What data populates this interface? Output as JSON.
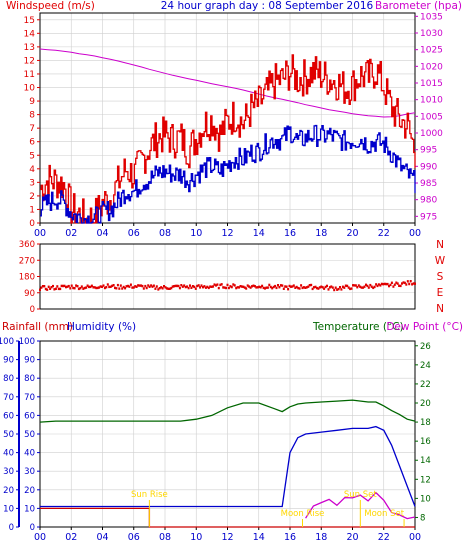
{
  "header": {
    "windspeed_label": "Windspeed (m/s)",
    "title": "24 hour graph day : 08 September 2016",
    "barometer_label": "Barometer (hpa)"
  },
  "lower_header": {
    "rainfall_label": "Rainfall (mm)",
    "humidity_label": "Humidity (%)",
    "temperature_label": "Temperature (°C)",
    "dewpoint_label": "Dew Point (°C)"
  },
  "colors": {
    "wind_gust": "#e00000",
    "wind_avg": "#0000cc",
    "barometer": "#cc00cc",
    "direction": "#e00000",
    "temperature": "#006600",
    "humidity": "#0000cc",
    "rain": "#cc0000",
    "dewpoint": "#cc00cc",
    "annotation": "#ffd700",
    "grid": "#cfcfcf",
    "frame": "#000000"
  },
  "chart_data": [
    {
      "type": "line",
      "panel": "wind_barometer",
      "x_ticks": [
        "00",
        "02",
        "04",
        "06",
        "08",
        "10",
        "12",
        "14",
        "16",
        "18",
        "20",
        "22",
        "00"
      ],
      "y_left_ticks": [
        0,
        1,
        2,
        3,
        4,
        5,
        6,
        7,
        8,
        9,
        10,
        11,
        12,
        13,
        14,
        15
      ],
      "y_left_range": [
        0,
        15.5
      ],
      "y_right_ticks": [
        975,
        980,
        985,
        990,
        995,
        1000,
        1005,
        1010,
        1015,
        1020,
        1025,
        1030,
        1035
      ],
      "y_right_range": [
        973,
        1036
      ],
      "hours": [
        0,
        0.5,
        1,
        1.5,
        2,
        2.5,
        3,
        3.5,
        4,
        4.5,
        5,
        5.5,
        6,
        6.5,
        7,
        7.5,
        8,
        8.5,
        9,
        9.5,
        10,
        10.5,
        11,
        11.5,
        12,
        12.5,
        13,
        13.5,
        14,
        14.5,
        15,
        15.5,
        16,
        16.5,
        17,
        17.5,
        18,
        18.5,
        19,
        19.5,
        20,
        20.5,
        21,
        21.5,
        22,
        22.5,
        23,
        23.5,
        24
      ],
      "series": [
        {
          "key": "gust",
          "values": [
            2.5,
            3.2,
            3.1,
            2.8,
            1,
            0.6,
            0.2,
            0.5,
            1.5,
            1.8,
            3,
            4,
            3.5,
            4.6,
            5.6,
            6.3,
            6.5,
            6.1,
            6.3,
            5.4,
            6.3,
            7.3,
            7.6,
            6.5,
            7.5,
            8,
            7.3,
            8.4,
            8.8,
            9.6,
            10.4,
            10.6,
            11.2,
            10.6,
            10.8,
            11.2,
            10.9,
            10.6,
            10.4,
            9.9,
            10.2,
            10.9,
            10.7,
            11.3,
            10,
            8.5,
            7.6,
            7.2,
            5.2
          ]
        },
        {
          "key": "average",
          "values": [
            1.1,
            1.5,
            1.8,
            1.5,
            0.7,
            0.4,
            0.3,
            0.4,
            0.8,
            1,
            1.6,
            2.4,
            2.3,
            3,
            3.2,
            3.7,
            3.8,
            3.6,
            3.6,
            3.1,
            3.6,
            4,
            4.2,
            3.8,
            4.3,
            4.8,
            4.7,
            5.2,
            5.3,
            5.9,
            6.2,
            6.1,
            6.8,
            6,
            6.3,
            6.5,
            6.4,
            6.5,
            6.2,
            6,
            6.1,
            6.2,
            5.8,
            6,
            5.8,
            5.1,
            4.2,
            3.6,
            3
          ]
        },
        {
          "key": "barometer",
          "values": [
            1025.2,
            1025,
            1024.8,
            1024.5,
            1024.2,
            1023.8,
            1023.5,
            1023.1,
            1022.6,
            1022.1,
            1021.6,
            1021,
            1020.4,
            1019.8,
            1019.1,
            1018.5,
            1017.9,
            1017.3,
            1016.8,
            1016.3,
            1015.8,
            1015.3,
            1014.8,
            1014.3,
            1013.9,
            1013.4,
            1012.9,
            1012.3,
            1011.7,
            1011.1,
            1010.6,
            1010.1,
            1009.6,
            1009.1,
            1008.5,
            1008,
            1007.5,
            1007,
            1006.6,
            1006.2,
            1005.8,
            1005.5,
            1005.2,
            1005,
            1004.8,
            1004.9,
            1005.2,
            1005.7,
            1006.1
          ]
        }
      ]
    },
    {
      "type": "scatter",
      "panel": "wind_direction",
      "x_ticks": [
        "00",
        "02",
        "04",
        "06",
        "08",
        "10",
        "12",
        "14",
        "16",
        "18",
        "20",
        "22",
        "00"
      ],
      "y_ticks": [
        0,
        90,
        180,
        270,
        360
      ],
      "y_range": [
        0,
        360
      ],
      "y_right_labels": [
        "N",
        "W",
        "S",
        "E",
        "N"
      ],
      "hours": [
        0,
        1,
        2,
        3,
        4,
        5,
        6,
        7,
        8,
        9,
        10,
        11,
        12,
        13,
        14,
        15,
        16,
        17,
        18,
        19,
        20,
        21,
        22,
        23,
        24
      ],
      "values": [
        115,
        118,
        124,
        120,
        128,
        122,
        126,
        120,
        118,
        124,
        121,
        125,
        127,
        123,
        126,
        122,
        119,
        124,
        120,
        115,
        122,
        126,
        130,
        138,
        148
      ]
    },
    {
      "type": "line",
      "panel": "rain_humidity_temperature",
      "x_ticks": [
        "00",
        "02",
        "04",
        "06",
        "08",
        "10",
        "12",
        "14",
        "16",
        "18",
        "20",
        "22",
        "00"
      ],
      "y_left_outer_ticks": [
        0,
        10,
        20,
        30,
        40,
        50,
        60,
        70,
        80,
        90,
        100
      ],
      "y_left_inner_ticks": [
        0,
        10,
        20,
        30,
        40,
        50,
        60,
        70,
        80,
        90,
        100
      ],
      "y_left_range": [
        0,
        100
      ],
      "y_right_ticks": [
        8,
        10,
        12,
        14,
        16,
        18,
        20,
        22,
        24,
        26
      ],
      "y_right_range": [
        7,
        26.5
      ],
      "hours": [
        0,
        1,
        2,
        3,
        4,
        5,
        6,
        7,
        8,
        9,
        10,
        11,
        12,
        13,
        14,
        15,
        15.5,
        16,
        16.5,
        17,
        18,
        19,
        20,
        21,
        21.5,
        22,
        22.5,
        23,
        23.5,
        24
      ],
      "series": [
        {
          "key": "temperature",
          "values": [
            18,
            18.1,
            18.1,
            18.1,
            18.1,
            18.1,
            18.1,
            18.1,
            18.1,
            18.1,
            18.3,
            18.7,
            19.5,
            20,
            20,
            19.4,
            19.1,
            19.6,
            19.9,
            20,
            20.1,
            20.2,
            20.3,
            20.1,
            20.1,
            19.7,
            19.2,
            18.8,
            18.3,
            18.1
          ]
        },
        {
          "key": "humidity",
          "values": [
            11,
            11,
            11,
            11,
            11,
            11,
            11,
            11,
            11,
            11,
            11,
            11,
            11,
            11,
            11,
            11,
            11,
            40,
            48,
            50,
            51,
            52,
            53,
            53,
            54,
            52,
            44,
            33,
            22,
            11
          ]
        },
        {
          "key": "rain",
          "values": [
            10,
            10,
            10,
            10,
            10,
            10,
            10,
            0,
            0,
            0,
            0,
            0,
            0,
            0,
            0,
            0,
            0,
            0,
            0,
            0,
            0,
            0,
            0,
            0,
            0,
            0,
            0,
            0,
            0,
            0
          ]
        },
        {
          "key": "dewpoint",
          "hours": [
            17,
            17.5,
            18,
            18.5,
            19,
            19.5,
            20,
            20.5,
            21,
            21.5,
            22,
            22.5,
            23,
            23.5,
            24
          ],
          "values": [
            8,
            9.1,
            9.8,
            9.7,
            9.5,
            10,
            10.2,
            10.1,
            9.8,
            10.5,
            9.6,
            8.5,
            8.1,
            8,
            8
          ]
        }
      ],
      "annotations": [
        {
          "text": "Sun Rise",
          "hour": 7
        },
        {
          "text": "Moon Rise",
          "hour": 16.8
        },
        {
          "text": "Sun Set",
          "hour": 20.5
        },
        {
          "text": "Moon Set",
          "hour": 23.3
        }
      ]
    }
  ]
}
